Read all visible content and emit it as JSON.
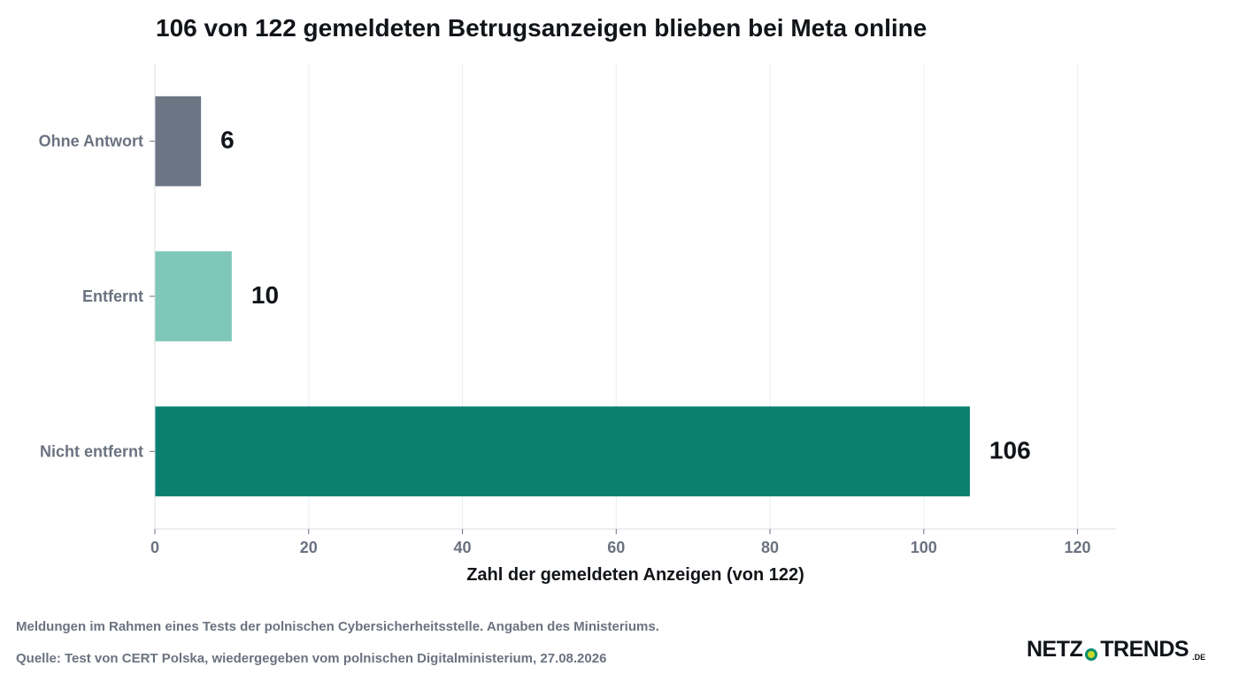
{
  "chart_data": {
    "type": "bar",
    "orientation": "horizontal",
    "title": "106 von 122 gemeldeten Betrugsanzeigen blieben bei Meta online",
    "xlabel": "Zahl der gemeldeten Anzeigen (von 122)",
    "ylabel": "",
    "categories": [
      "Ohne Antwort",
      "Entfernt",
      "Nicht entfernt"
    ],
    "values": [
      6,
      10,
      106
    ],
    "value_labels": [
      "6",
      "10",
      "106"
    ],
    "colors": [
      "#6b7584",
      "#7fc7b8",
      "#0b8070"
    ],
    "xlim": [
      0,
      125
    ],
    "xticks": [
      0,
      20,
      40,
      60,
      80,
      100,
      120
    ],
    "grid": "vertical"
  },
  "notes": {
    "line1": "Meldungen im Rahmen eines Tests der polnischen Cybersicherheitsstelle. Angaben des Ministeriums.",
    "line2": "Quelle: Test von CERT Polska, wiedergegeben vom polnischen Digitalministerium, 27.08.2026"
  },
  "logo": {
    "part1": "NETZ",
    "part2": "TRENDS",
    "tld": ".DE"
  }
}
